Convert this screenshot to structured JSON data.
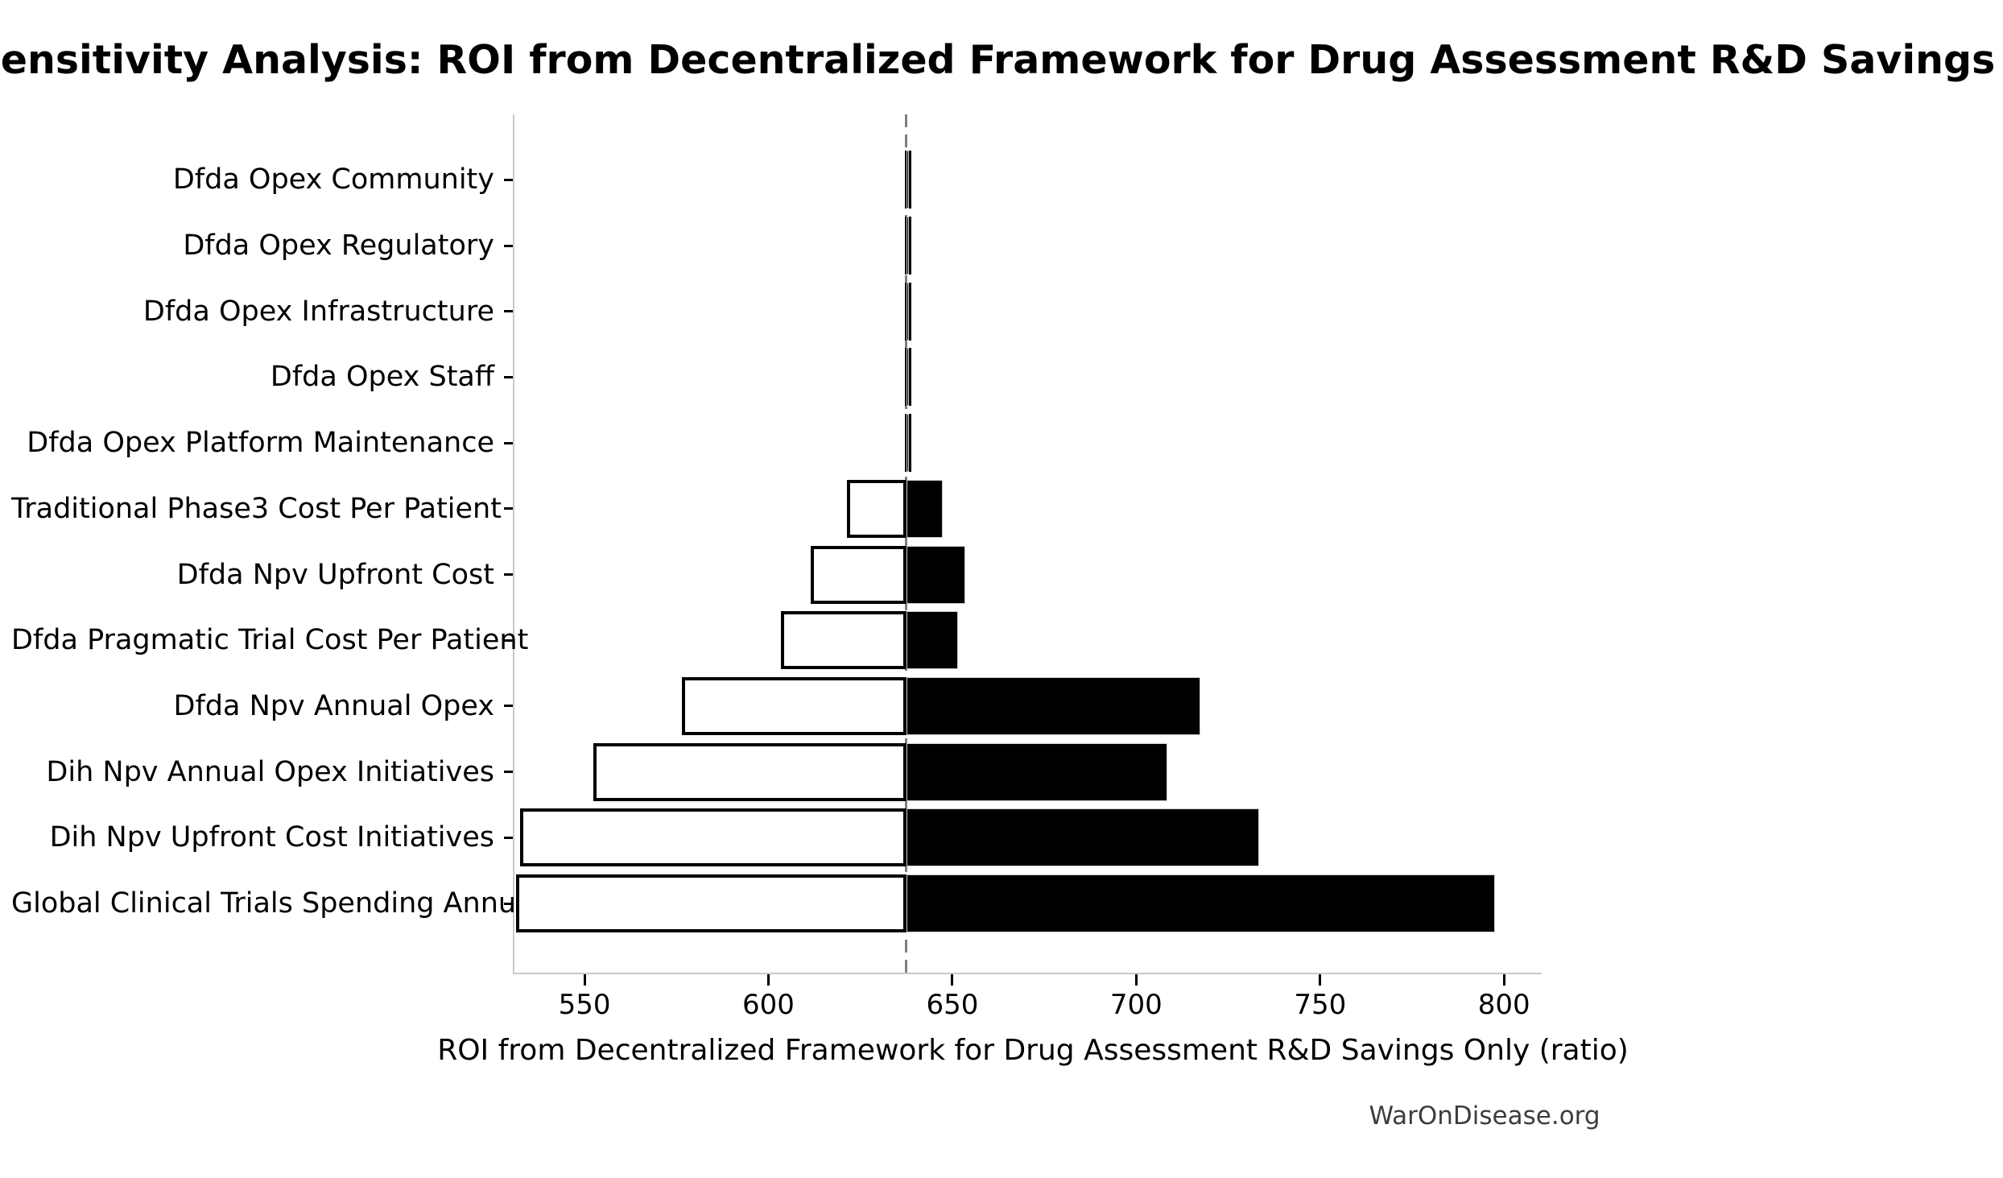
{
  "title": "Sensitivity Analysis: ROI from Decentralized Framework for Drug Assessment R&D Savings Only",
  "footer": "WarOnDisease.org",
  "colors": {
    "bar_high_fill": "#000000",
    "bar_low_fill": "#ffffff",
    "bar_border": "#000000",
    "baseline_dash": "#7f7f7f",
    "axis_spine": "#c9c9c9",
    "footer_text": "#3d3d3d",
    "text": "#000000"
  },
  "chart_data": {
    "type": "bar",
    "subtype": "tornado-sensitivity",
    "orientation": "horizontal",
    "title": "Sensitivity Analysis: ROI from Decentralized Framework for Drug Assessment R&D Savings Only",
    "xlabel": "ROI from Decentralized Framework for Drug Assessment R&D Savings Only (ratio)",
    "ylabel": "",
    "base_value": 637,
    "xlim": [
      530.5,
      809.8
    ],
    "x_ticks": [
      550,
      600,
      650,
      700,
      750,
      800
    ],
    "grid": false,
    "legend": "none",
    "categories": [
      "Dfda Opex Community",
      "Dfda Opex Regulatory",
      "Dfda Opex Infrastructure",
      "Dfda Opex Staff",
      "Dfda Opex Platform Maintenance",
      "Traditional Phase3 Cost Per Patient",
      "Dfda Npv Upfront Cost",
      "Dfda Pragmatic Trial Cost Per Patient",
      "Dfda Npv Annual Opex",
      "Dih Npv Annual Opex Initiatives",
      "Dih Npv Upfront Cost Initiatives",
      "Global Clinical Trials Spending Annual"
    ],
    "rows": [
      {
        "label": "Dfda Opex Community",
        "low": 636.7,
        "high": 637.3
      },
      {
        "label": "Dfda Opex Regulatory",
        "low": 636.7,
        "high": 637.3
      },
      {
        "label": "Dfda Opex Infrastructure",
        "low": 636.7,
        "high": 637.3
      },
      {
        "label": "Dfda Opex Staff",
        "low": 636.7,
        "high": 637.3
      },
      {
        "label": "Dfda Opex Platform Maintenance",
        "low": 636.7,
        "high": 637.3
      },
      {
        "label": "Traditional Phase3 Cost Per Patient",
        "low": 621,
        "high": 647
      },
      {
        "label": "Dfda Npv Upfront Cost",
        "low": 611,
        "high": 653
      },
      {
        "label": "Dfda Pragmatic Trial Cost Per Patient",
        "low": 603,
        "high": 651
      },
      {
        "label": "Dfda Npv Annual Opex",
        "low": 576,
        "high": 717
      },
      {
        "label": "Dih Npv Annual Opex Initiatives",
        "low": 552,
        "high": 708
      },
      {
        "label": "Dih Npv Upfront Cost Initiatives",
        "low": 532,
        "high": 733
      },
      {
        "label": "Global Clinical Trials Spending Annual",
        "low": 531,
        "high": 797
      }
    ]
  }
}
